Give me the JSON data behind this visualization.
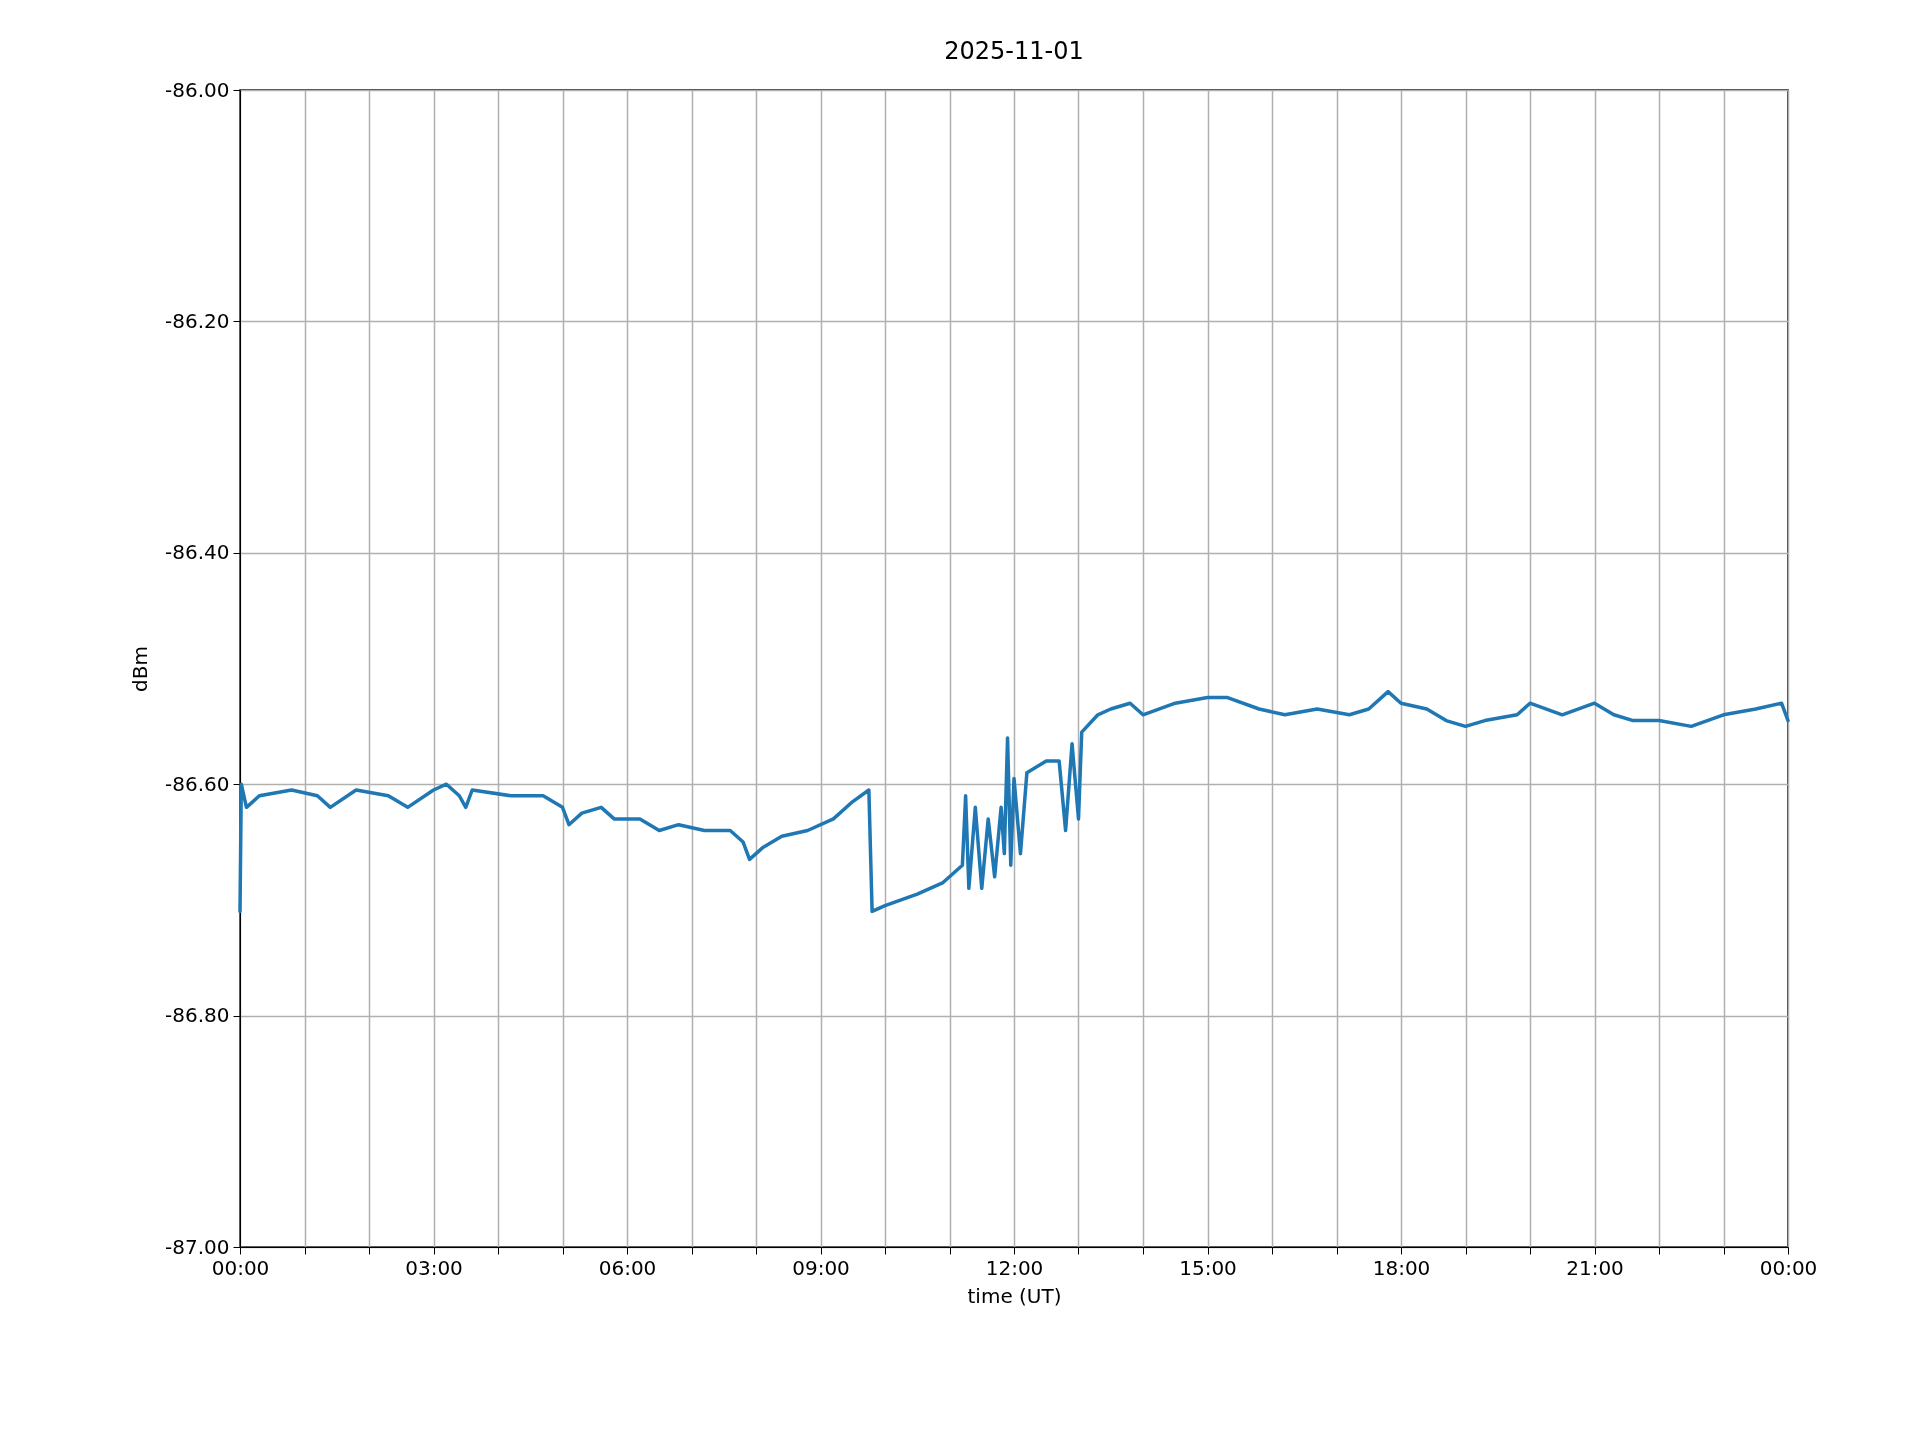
{
  "chart_data": {
    "type": "line",
    "title": "2025-11-01",
    "xlabel": "time (UT)",
    "ylabel": "dBm",
    "x": [
      0,
      0.02,
      0.1,
      0.3,
      0.8,
      1.2,
      1.4,
      1.8,
      2.3,
      2.6,
      3.0,
      3.2,
      3.4,
      3.5,
      3.6,
      4.2,
      4.7,
      5.0,
      5.1,
      5.3,
      5.6,
      5.8,
      6.2,
      6.5,
      6.8,
      7.2,
      7.6,
      7.8,
      7.9,
      8.1,
      8.4,
      8.8,
      9.2,
      9.5,
      9.75,
      9.8,
      10.0,
      10.5,
      10.9,
      11.2,
      11.25,
      11.3,
      11.4,
      11.5,
      11.6,
      11.7,
      11.8,
      11.85,
      11.9,
      11.95,
      12.0,
      12.1,
      12.2,
      12.5,
      12.7,
      12.8,
      12.9,
      13.0,
      13.05,
      13.3,
      13.5,
      13.8,
      14.0,
      14.5,
      15.0,
      15.3,
      15.8,
      16.2,
      16.7,
      17.2,
      17.5,
      17.8,
      18.0,
      18.4,
      18.7,
      19.0,
      19.3,
      19.8,
      20.0,
      20.5,
      21.0,
      21.3,
      21.6,
      22.0,
      22.5,
      23.0,
      23.5,
      23.9,
      24.0
    ],
    "series": [
      {
        "color": "#1f77b4",
        "values": [
          -86.71,
          -86.6,
          -86.62,
          -86.61,
          -86.605,
          -86.61,
          -86.62,
          -86.605,
          -86.61,
          -86.62,
          -86.605,
          -86.6,
          -86.61,
          -86.62,
          -86.605,
          -86.61,
          -86.61,
          -86.62,
          -86.635,
          -86.625,
          -86.62,
          -86.63,
          -86.63,
          -86.64,
          -86.635,
          -86.64,
          -86.64,
          -86.65,
          -86.665,
          -86.655,
          -86.645,
          -86.64,
          -86.63,
          -86.615,
          -86.605,
          -86.71,
          -86.705,
          -86.695,
          -86.685,
          -86.67,
          -86.61,
          -86.69,
          -86.62,
          -86.69,
          -86.63,
          -86.68,
          -86.62,
          -86.66,
          -86.56,
          -86.67,
          -86.595,
          -86.66,
          -86.59,
          -86.58,
          -86.58,
          -86.64,
          -86.565,
          -86.63,
          -86.555,
          -86.54,
          -86.535,
          -86.53,
          -86.54,
          -86.53,
          -86.525,
          -86.525,
          -86.535,
          -86.54,
          -86.535,
          -86.54,
          -86.535,
          -86.52,
          -86.53,
          -86.535,
          -86.545,
          -86.55,
          -86.545,
          -86.54,
          -86.53,
          -86.54,
          -86.53,
          -86.54,
          -86.545,
          -86.545,
          -86.55,
          -86.54,
          -86.535,
          -86.53,
          -86.545
        ]
      }
    ],
    "xlim": [
      0,
      24
    ],
    "xticks": [
      {
        "value": 0,
        "label": "00:00"
      },
      {
        "value": 1,
        "label": null
      },
      {
        "value": 2,
        "label": null
      },
      {
        "value": 3,
        "label": "03:00"
      },
      {
        "value": 4,
        "label": null
      },
      {
        "value": 5,
        "label": null
      },
      {
        "value": 6,
        "label": "06:00"
      },
      {
        "value": 7,
        "label": null
      },
      {
        "value": 8,
        "label": null
      },
      {
        "value": 9,
        "label": "09:00"
      },
      {
        "value": 10,
        "label": null
      },
      {
        "value": 11,
        "label": null
      },
      {
        "value": 12,
        "label": "12:00"
      },
      {
        "value": 13,
        "label": null
      },
      {
        "value": 14,
        "label": null
      },
      {
        "value": 15,
        "label": "15:00"
      },
      {
        "value": 16,
        "label": null
      },
      {
        "value": 17,
        "label": null
      },
      {
        "value": 18,
        "label": "18:00"
      },
      {
        "value": 19,
        "label": null
      },
      {
        "value": 20,
        "label": null
      },
      {
        "value": 21,
        "label": "21:00"
      },
      {
        "value": 22,
        "label": null
      },
      {
        "value": 23,
        "label": null
      },
      {
        "value": 24,
        "label": "00:00"
      }
    ],
    "ylim": [
      -87,
      -86
    ],
    "yticks": [
      {
        "value": -87,
        "label": "-87.00"
      },
      {
        "value": -86.8,
        "label": "-86.80"
      },
      {
        "value": -86.6,
        "label": "-86.60"
      },
      {
        "value": -86.4,
        "label": "-86.40"
      },
      {
        "value": -86.2,
        "label": "-86.20"
      },
      {
        "value": -86,
        "label": "-86.00"
      }
    ],
    "grid": true,
    "marker": "none",
    "line_style": "solid"
  }
}
